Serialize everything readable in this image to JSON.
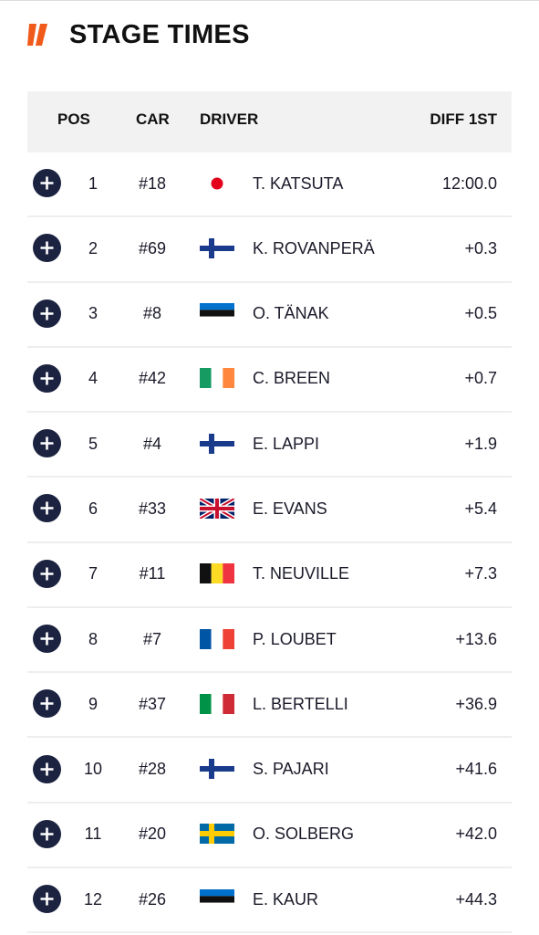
{
  "header": {
    "title": "STAGE TIMES"
  },
  "table": {
    "columns": [
      "POS",
      "CAR",
      "DRIVER",
      "DIFF 1ST"
    ],
    "rows": [
      [
        "1",
        "#18",
        "T. KATSUTA",
        "12:00.0"
      ],
      [
        "2",
        "#69",
        "K. ROVANPERÄ",
        "+0.3"
      ],
      [
        "3",
        "#8",
        "O. TÄNAK",
        "+0.5"
      ],
      [
        "4",
        "#42",
        "C. BREEN",
        "+0.7"
      ],
      [
        "5",
        "#4",
        "E. LAPPI",
        "+1.9"
      ],
      [
        "6",
        "#33",
        "E. EVANS",
        "+5.4"
      ],
      [
        "7",
        "#11",
        "T. NEUVILLE",
        "+7.3"
      ],
      [
        "8",
        "#7",
        "P. LOUBET",
        "+13.6"
      ],
      [
        "9",
        "#37",
        "L. BERTELLI",
        "+36.9"
      ],
      [
        "10",
        "#28",
        "S. PAJARI",
        "+41.6"
      ],
      [
        "11",
        "#20",
        "O. SOLBERG",
        "+42.0"
      ],
      [
        "12",
        "#26",
        "E. KAUR",
        "+44.3"
      ]
    ]
  }
}
